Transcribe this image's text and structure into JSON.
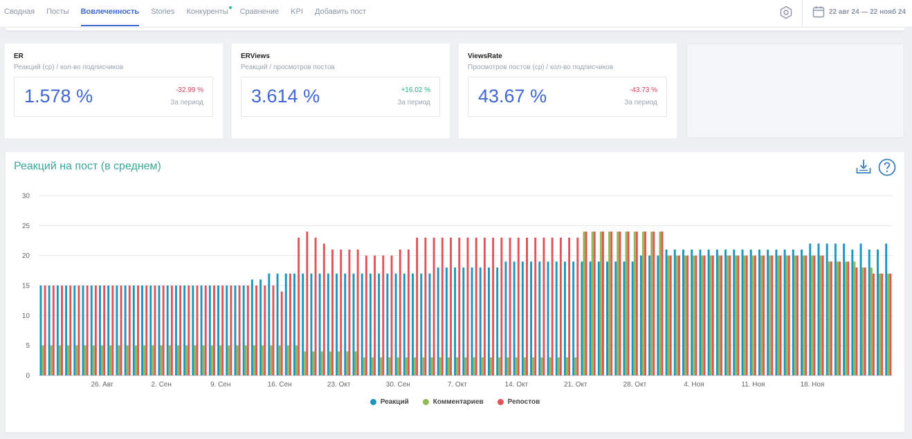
{
  "nav": {
    "tabs": [
      {
        "label": "Сводная"
      },
      {
        "label": "Посты"
      },
      {
        "label": "Вовлеченность",
        "active": true
      },
      {
        "label": "Stories"
      },
      {
        "label": "Конкуренты",
        "dot": true
      },
      {
        "label": "Сравнение"
      },
      {
        "label": "KPI"
      },
      {
        "label": "Добавить пост"
      }
    ],
    "date_range": "22 авг 24 — 22 нояб 24"
  },
  "metrics": [
    {
      "title": "ER",
      "subtitle": "Реакций (ср) / кол-во подписчиков",
      "value": "1.578 %",
      "delta": "-32.99 %",
      "delta_sign": "neg",
      "period": "За период"
    },
    {
      "title": "ERViews",
      "subtitle": "Реакций / просмотров постов",
      "value": "3.614 %",
      "delta": "+16.02 %",
      "delta_sign": "pos",
      "period": "За период"
    },
    {
      "title": "ViewsRate",
      "subtitle": "Просмотров постов (ср) / кол-во подписчиков",
      "value": "43.67 %",
      "delta": "-43.73 %",
      "delta_sign": "neg",
      "period": "За период"
    }
  ],
  "chart": {
    "title": "Реакций на пост (в среднем)"
  },
  "colors": {
    "reactions": "#1a96c0",
    "comments": "#8fbb4f",
    "reposts": "#e05459"
  },
  "chart_data": {
    "type": "bar",
    "title": "Реакций на пост (в среднем)",
    "ylim": [
      0,
      30
    ],
    "yticks": [
      0,
      5,
      10,
      15,
      20,
      25,
      30
    ],
    "xticks": [
      {
        "label": "26. Авг",
        "index": 7
      },
      {
        "label": "2. Сен",
        "index": 14
      },
      {
        "label": "9. Сен",
        "index": 21
      },
      {
        "label": "16. Сен",
        "index": 28
      },
      {
        "label": "23. Окт",
        "index": 35
      },
      {
        "label": "30. Сен",
        "index": 42
      },
      {
        "label": "7. Окт",
        "index": 49
      },
      {
        "label": "14. Окт",
        "index": 56
      },
      {
        "label": "21. Окт",
        "index": 63
      },
      {
        "label": "28. Окт",
        "index": 70
      },
      {
        "label": "4. Ноя",
        "index": 77
      },
      {
        "label": "11. Ноя",
        "index": 84
      },
      {
        "label": "18. Ноя",
        "index": 91
      }
    ],
    "series": [
      {
        "name": "Реакций",
        "values": [
          15,
          15,
          15,
          15,
          15,
          15,
          15,
          15,
          15,
          15,
          15,
          15,
          15,
          15,
          15,
          15,
          15,
          15,
          15,
          15,
          15,
          15,
          15,
          15,
          15,
          16,
          16,
          17,
          17,
          17,
          17,
          17,
          17,
          17,
          17,
          17,
          17,
          17,
          17,
          17,
          17,
          17,
          17,
          17,
          17,
          17,
          17,
          18,
          18,
          18,
          18,
          18,
          18,
          18,
          18,
          19,
          19,
          19,
          19,
          19,
          19,
          19,
          19,
          19,
          19,
          19,
          19,
          19,
          19,
          19,
          19,
          20,
          20,
          20,
          21,
          21,
          21,
          21,
          21,
          21,
          21,
          21,
          21,
          21,
          21,
          21,
          21,
          21,
          21,
          21,
          21,
          22,
          22,
          22,
          22,
          22,
          21,
          22,
          21,
          21,
          22
        ]
      },
      {
        "name": "Комментариев",
        "values": [
          5,
          5,
          5,
          5,
          5,
          5,
          5,
          5,
          5,
          5,
          5,
          5,
          5,
          5,
          5,
          5,
          5,
          5,
          5,
          5,
          5,
          5,
          5,
          5,
          5,
          5,
          5,
          5,
          5,
          5,
          5,
          4,
          4,
          4,
          4,
          4,
          4,
          4,
          3,
          3,
          3,
          3,
          3,
          3,
          3,
          3,
          3,
          3,
          3,
          3,
          3,
          3,
          3,
          3,
          3,
          3,
          3,
          3,
          3,
          3,
          3,
          3,
          3,
          3,
          24,
          24,
          24,
          24,
          24,
          24,
          24,
          24,
          24,
          24,
          20,
          20,
          20,
          20,
          20,
          20,
          20,
          20,
          20,
          20,
          20,
          20,
          20,
          20,
          20,
          20,
          20,
          20,
          20,
          19,
          19,
          19,
          19,
          18,
          18,
          17,
          17
        ]
      },
      {
        "name": "Репостов",
        "values": [
          15,
          15,
          15,
          15,
          15,
          15,
          15,
          15,
          15,
          15,
          15,
          15,
          15,
          15,
          15,
          15,
          15,
          15,
          15,
          15,
          15,
          15,
          15,
          15,
          15,
          15,
          15,
          15,
          14,
          17,
          23,
          24,
          23,
          22,
          21,
          21,
          21,
          21,
          20,
          20,
          20,
          20,
          21,
          21,
          23,
          23,
          23,
          23,
          23,
          23,
          23,
          23,
          23,
          23,
          23,
          23,
          23,
          23,
          23,
          23,
          23,
          23,
          23,
          23,
          24,
          24,
          24,
          24,
          24,
          24,
          24,
          24,
          24,
          24,
          20,
          20,
          20,
          20,
          20,
          20,
          20,
          20,
          20,
          20,
          20,
          20,
          20,
          20,
          20,
          20,
          20,
          20,
          20,
          19,
          19,
          19,
          18,
          18,
          17,
          17,
          17
        ]
      }
    ]
  }
}
